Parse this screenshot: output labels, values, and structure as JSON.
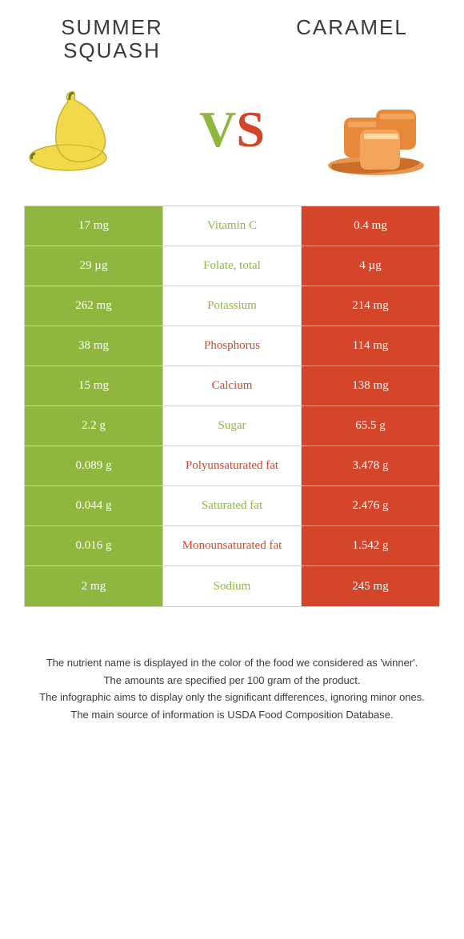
{
  "colors": {
    "left_food": "#8fb63f",
    "right_food": "#d4452a",
    "left_cell_bg": "#8fb63f",
    "right_cell_bg": "#d4452a",
    "mid_cell_bg": "#ffffff",
    "border": "#d0d0d0",
    "text_dark": "#3a3a3a",
    "squash_fill": "#f2d94a",
    "squash_stroke": "#c9b030",
    "caramel_fill": "#e68a3a",
    "caramel_highlight": "#f4a55c",
    "caramel_shadow": "#c96d28"
  },
  "header": {
    "left_title": "Summer squash",
    "right_title": "Caramel",
    "vs_v": "V",
    "vs_s": "S"
  },
  "table": {
    "rows": [
      {
        "nutrient": "Vitamin C",
        "left": "17 mg",
        "right": "0.4 mg",
        "winner": "left"
      },
      {
        "nutrient": "Folate, total",
        "left": "29 µg",
        "right": "4 µg",
        "winner": "left"
      },
      {
        "nutrient": "Potassium",
        "left": "262 mg",
        "right": "214 mg",
        "winner": "left"
      },
      {
        "nutrient": "Phosphorus",
        "left": "38 mg",
        "right": "114 mg",
        "winner": "right"
      },
      {
        "nutrient": "Calcium",
        "left": "15 mg",
        "right": "138 mg",
        "winner": "right"
      },
      {
        "nutrient": "Sugar",
        "left": "2.2 g",
        "right": "65.5 g",
        "winner": "left"
      },
      {
        "nutrient": "Polyunsaturated fat",
        "left": "0.089 g",
        "right": "3.478 g",
        "winner": "right"
      },
      {
        "nutrient": "Saturated fat",
        "left": "0.044 g",
        "right": "2.476 g",
        "winner": "left"
      },
      {
        "nutrient": "Monounsaturated fat",
        "left": "0.016 g",
        "right": "1.542 g",
        "winner": "right"
      },
      {
        "nutrient": "Sodium",
        "left": "2 mg",
        "right": "245 mg",
        "winner": "left"
      }
    ]
  },
  "footnotes": [
    "The nutrient name is displayed in the color of the food we considered as 'winner'.",
    "The amounts are specified per 100 gram of the product.",
    "The infographic aims to display only the significant differences, ignoring minor ones.",
    "The main source of information is USDA Food Composition Database."
  ]
}
